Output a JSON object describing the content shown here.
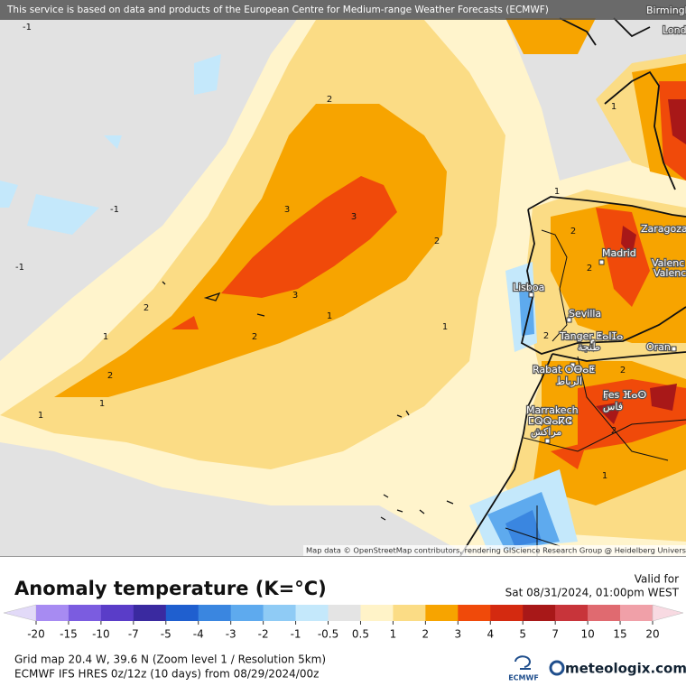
{
  "header": {
    "notice": "This service is based on data and products of the European Centre for Medium-range Weather Forecasts (ECMWF)"
  },
  "map": {
    "cities": [
      "Birmingham",
      "Lond",
      "Zaragoza",
      "Madrid",
      "Valenc",
      "Valenc",
      "Lisboa",
      "Sevilla",
      "Tanger ⵟⴰⵏⵊⴰ",
      "طنجة",
      "Oran",
      "Rabat ⵔⴱⴰⵟ",
      "الرباط",
      "Fes ⴼⴰⵙ",
      "فاس",
      "Marrakech",
      "ⵎⵕⵕⴰⴽⵛ",
      "مراكش"
    ],
    "contour_labels": [
      -1,
      -1,
      -1,
      2,
      3,
      3,
      2,
      3,
      2,
      1,
      1,
      2,
      1,
      2,
      1,
      1,
      1,
      2,
      2,
      2,
      2,
      1,
      2,
      1
    ],
    "attribution": "Map data © OpenStreetMap contributors, rendering GIScience Research Group @ Heidelberg University"
  },
  "legend": {
    "title": "Anomaly temperature (K=°C)",
    "valid_label": "Valid for",
    "valid_time": "Sat 08/31/2024, 01:00pm WEST",
    "ticks": [
      -20,
      -15,
      -10,
      -7,
      -5,
      -4,
      -3,
      -2,
      -1,
      -0.5,
      0.5,
      1,
      2,
      3,
      4,
      5,
      7,
      10,
      15,
      20
    ],
    "colors": [
      "#e2daf8",
      "#a78bf2",
      "#7b5ce0",
      "#5a3dc8",
      "#3a2aa0",
      "#1f5fcf",
      "#3a86e0",
      "#5eaaee",
      "#8fcbf5",
      "#c4e8fb",
      "#e4e4e4",
      "#fff3c8",
      "#fbdc85",
      "#f7a400",
      "#f04a0a",
      "#d42a10",
      "#a81818",
      "#c8343a",
      "#e06a70",
      "#f0a0a8",
      "#f8dae2"
    ]
  },
  "footer": {
    "grid": "Grid map 20.4 W, 39.6 N (Zoom level 1 / Resolution 5km)",
    "model": "ECMWF IFS HRES 0z/12z (10 days) from 08/29/2024/00z",
    "ecmwf": "ECMWF",
    "brand": "meteologix.com"
  }
}
